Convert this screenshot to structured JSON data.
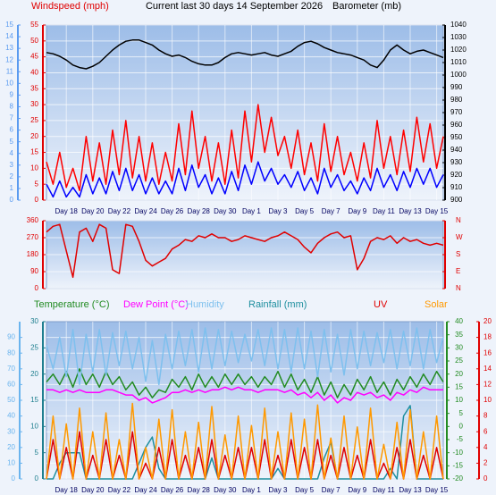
{
  "chart_data": [
    {
      "type": "line",
      "title": "Current last 30 days 14 September 2026",
      "x": [
        0,
        0.5,
        1,
        1.5,
        2,
        2.5,
        3,
        3.5,
        4,
        4.5,
        5,
        5.5,
        6,
        6.5,
        7,
        7.5,
        8,
        8.5,
        9,
        9.5,
        10,
        10.5,
        11,
        11.5,
        12,
        12.5,
        13,
        13.5,
        14,
        14.5,
        15,
        15.5,
        16,
        16.5,
        17,
        17.5,
        18,
        18.5,
        19,
        19.5,
        20,
        20.5,
        21,
        21.5,
        22,
        22.5,
        23,
        23.5,
        24,
        24.5,
        25,
        25.5,
        26,
        26.5,
        27,
        27.5,
        28,
        28.5,
        29,
        29.5,
        30
      ],
      "xlim": [
        0,
        30
      ],
      "xticks": [
        {
          "value": 1.5,
          "label": "Day 18"
        },
        {
          "value": 3.5,
          "label": "Day 20"
        },
        {
          "value": 5.5,
          "label": "Day 22"
        },
        {
          "value": 7.5,
          "label": "Day 24"
        },
        {
          "value": 9.5,
          "label": "Day 26"
        },
        {
          "value": 11.5,
          "label": "Day 28"
        },
        {
          "value": 13.5,
          "label": "Day 30"
        },
        {
          "value": 15.5,
          "label": "Day 1"
        },
        {
          "value": 17.5,
          "label": "Day 3"
        },
        {
          "value": 19.5,
          "label": "Day 5"
        },
        {
          "value": 21.5,
          "label": "Day 7"
        },
        {
          "value": 23.5,
          "label": "Day 9"
        },
        {
          "value": 25.5,
          "label": "Day 11"
        },
        {
          "value": 27.5,
          "label": "Day 13"
        },
        {
          "value": 29.5,
          "label": "Day 15"
        }
      ],
      "axes": [
        {
          "side": "left",
          "color": "#5b9bf0",
          "ylim": [
            0,
            15
          ],
          "yticks": [
            0,
            1,
            2,
            3,
            4,
            5,
            6,
            7,
            8,
            9,
            10,
            11,
            12,
            13,
            14,
            15
          ]
        },
        {
          "side": "left",
          "color": "#e00000",
          "label": "Windspeed (mph)",
          "ylim": [
            0,
            55
          ],
          "yticks": [
            0,
            5,
            10,
            15,
            20,
            25,
            30,
            35,
            40,
            45,
            50,
            55
          ],
          "grid": true
        },
        {
          "side": "right",
          "color": "#000000",
          "label": "Barometer (mb)",
          "ylim": [
            900,
            1040
          ],
          "yticks": [
            900,
            910,
            920,
            930,
            940,
            950,
            960,
            970,
            980,
            990,
            1000,
            1010,
            1020,
            1030,
            1040
          ]
        }
      ],
      "series": [
        {
          "color": "#ff0000",
          "axis": 1,
          "values": [
            12,
            5,
            15,
            4,
            10,
            3,
            20,
            6,
            18,
            5,
            22,
            8,
            25,
            7,
            20,
            6,
            18,
            5,
            15,
            6,
            24,
            8,
            28,
            10,
            20,
            6,
            18,
            5,
            22,
            7,
            28,
            12,
            30,
            15,
            26,
            14,
            20,
            10,
            22,
            8,
            18,
            6,
            24,
            9,
            20,
            8,
            15,
            6,
            18,
            7,
            25,
            10,
            20,
            8,
            22,
            9,
            26,
            12,
            24,
            10,
            20
          ]
        },
        {
          "color": "#0000ff",
          "axis": 1,
          "values": [
            5,
            1,
            6,
            1,
            4,
            1,
            8,
            2,
            7,
            2,
            9,
            3,
            10,
            3,
            8,
            2,
            7,
            2,
            6,
            2,
            10,
            3,
            11,
            4,
            8,
            2,
            7,
            2,
            9,
            3,
            11,
            5,
            12,
            6,
            10,
            5,
            8,
            4,
            9,
            3,
            7,
            2,
            10,
            4,
            8,
            3,
            6,
            2,
            7,
            3,
            10,
            4,
            8,
            3,
            9,
            4,
            10,
            5,
            10,
            4,
            8
          ]
        },
        {
          "color": "#000000",
          "axis": 2,
          "values": [
            1018,
            1017,
            1015,
            1012,
            1008,
            1006,
            1005,
            1007,
            1010,
            1015,
            1020,
            1024,
            1027,
            1028,
            1028,
            1026,
            1024,
            1020,
            1017,
            1015,
            1016,
            1014,
            1011,
            1009,
            1008,
            1008,
            1010,
            1014,
            1017,
            1018,
            1017,
            1016,
            1017,
            1018,
            1016,
            1015,
            1017,
            1019,
            1023,
            1026,
            1027,
            1025,
            1022,
            1020,
            1018,
            1017,
            1016,
            1014,
            1012,
            1008,
            1006,
            1012,
            1020,
            1024,
            1020,
            1017,
            1019,
            1020,
            1018,
            1016,
            1014
          ]
        }
      ]
    },
    {
      "type": "line",
      "x": [
        0,
        0.5,
        1,
        1.5,
        2,
        2.5,
        3,
        3.5,
        4,
        4.5,
        5,
        5.5,
        6,
        6.5,
        7,
        7.5,
        8,
        8.5,
        9,
        9.5,
        10,
        10.5,
        11,
        11.5,
        12,
        12.5,
        13,
        13.5,
        14,
        14.5,
        15,
        15.5,
        16,
        16.5,
        17,
        17.5,
        18,
        18.5,
        19,
        19.5,
        20,
        20.5,
        21,
        21.5,
        22,
        22.5,
        23,
        23.5,
        24,
        24.5,
        25,
        25.5,
        26,
        26.5,
        27,
        27.5,
        28,
        28.5,
        29,
        29.5,
        30
      ],
      "xlim": [
        0,
        30
      ],
      "axes": [
        {
          "side": "left",
          "color": "#e00000",
          "ylim": [
            0,
            360
          ],
          "yticks": [
            0,
            90,
            180,
            270,
            360
          ],
          "grid": true
        },
        {
          "side": "right",
          "color": "#e00000",
          "ylim": [
            0,
            360
          ],
          "yticks": [
            {
              "value": 0,
              "label": "N"
            },
            {
              "value": 90,
              "label": "E"
            },
            {
              "value": 180,
              "label": "S"
            },
            {
              "value": 270,
              "label": "W"
            },
            {
              "value": 360,
              "label": "N"
            }
          ]
        }
      ],
      "series": [
        {
          "color": "#e00000",
          "axis": 0,
          "values": [
            300,
            330,
            340,
            200,
            60,
            300,
            320,
            250,
            340,
            320,
            100,
            80,
            340,
            330,
            250,
            150,
            120,
            140,
            160,
            210,
            230,
            260,
            250,
            280,
            270,
            290,
            270,
            270,
            250,
            260,
            280,
            270,
            260,
            250,
            270,
            280,
            300,
            280,
            260,
            220,
            190,
            240,
            270,
            290,
            300,
            270,
            280,
            100,
            160,
            250,
            270,
            260,
            280,
            240,
            270,
            250,
            260,
            240,
            230,
            240,
            230
          ]
        }
      ]
    },
    {
      "type": "line",
      "x": [
        0,
        0.5,
        1,
        1.5,
        2,
        2.5,
        3,
        3.5,
        4,
        4.5,
        5,
        5.5,
        6,
        6.5,
        7,
        7.5,
        8,
        8.5,
        9,
        9.5,
        10,
        10.5,
        11,
        11.5,
        12,
        12.5,
        13,
        13.5,
        14,
        14.5,
        15,
        15.5,
        16,
        16.5,
        17,
        17.5,
        18,
        18.5,
        19,
        19.5,
        20,
        20.5,
        21,
        21.5,
        22,
        22.5,
        23,
        23.5,
        24,
        24.5,
        25,
        25.5,
        26,
        26.5,
        27,
        27.5,
        28,
        28.5,
        29,
        29.5,
        30
      ],
      "xlim": [
        0,
        30
      ],
      "xticks": [
        {
          "value": 1.5,
          "label": "Day 18"
        },
        {
          "value": 3.5,
          "label": "Day 20"
        },
        {
          "value": 5.5,
          "label": "Day 22"
        },
        {
          "value": 7.5,
          "label": "Day 24"
        },
        {
          "value": 9.5,
          "label": "Day 26"
        },
        {
          "value": 11.5,
          "label": "Day 28"
        },
        {
          "value": 13.5,
          "label": "Day 30"
        },
        {
          "value": 15.5,
          "label": "Day 1"
        },
        {
          "value": 17.5,
          "label": "Day 3"
        },
        {
          "value": 19.5,
          "label": "Day 5"
        },
        {
          "value": 21.5,
          "label": "Day 7"
        },
        {
          "value": 23.5,
          "label": "Day 9"
        },
        {
          "value": 25.5,
          "label": "Day 11"
        },
        {
          "value": 27.5,
          "label": "Day 13"
        },
        {
          "value": 29.5,
          "label": "Day 15"
        }
      ],
      "axes": [
        {
          "side": "left",
          "color": "#6ab4ee",
          "ylim": [
            0,
            100
          ],
          "yticks": [
            0,
            10,
            20,
            30,
            40,
            50,
            60,
            70,
            80,
            90
          ],
          "grid": true
        },
        {
          "side": "left",
          "color": "#1f7f8f",
          "ylim": [
            0,
            30
          ],
          "yticks": [
            0,
            5,
            10,
            15,
            20,
            25,
            30
          ]
        },
        {
          "side": "right",
          "color": "#228b22",
          "ylim": [
            -20,
            40
          ],
          "yticks": [
            -20,
            -15,
            -10,
            -5,
            0,
            5,
            10,
            15,
            20,
            25,
            30,
            35,
            40
          ]
        },
        {
          "side": "right",
          "color": "#e00000",
          "ylim": [
            0,
            20
          ],
          "yticks": [
            0,
            2,
            4,
            6,
            8,
            10,
            12,
            14,
            16,
            18,
            20
          ]
        }
      ],
      "series": [
        {
          "name": "Temperature (°C)",
          "color": "#228b22",
          "axis": 2,
          "values": [
            17,
            20,
            16,
            21,
            15,
            22,
            16,
            20,
            15,
            21,
            16,
            19,
            14,
            17,
            12,
            15,
            11,
            14,
            13,
            18,
            15,
            19,
            14,
            20,
            15,
            19,
            15,
            20,
            16,
            20,
            16,
            19,
            15,
            19,
            16,
            21,
            15,
            20,
            14,
            18,
            13,
            19,
            12,
            17,
            11,
            16,
            12,
            18,
            14,
            19,
            13,
            17,
            12,
            18,
            14,
            19,
            15,
            20,
            16,
            21,
            17
          ]
        },
        {
          "name": "Dew Point (°C)",
          "color": "#ff00ff",
          "axis": 2,
          "values": [
            14,
            14,
            13,
            14,
            13,
            14,
            13,
            13,
            13,
            14,
            14,
            13,
            12,
            12,
            10,
            11,
            9,
            10,
            11,
            13,
            13,
            14,
            13,
            14,
            13,
            14,
            14,
            15,
            14,
            15,
            14,
            14,
            13,
            14,
            14,
            14,
            13,
            14,
            12,
            13,
            11,
            13,
            10,
            12,
            9,
            11,
            10,
            13,
            12,
            13,
            11,
            12,
            10,
            13,
            12,
            14,
            13,
            15,
            14,
            14,
            14
          ]
        },
        {
          "name": "Humidity",
          "color": "#7ec0ee",
          "axis": 0,
          "values": [
            85,
            70,
            90,
            65,
            95,
            60,
            92,
            68,
            95,
            66,
            93,
            72,
            94,
            70,
            90,
            62,
            88,
            60,
            92,
            70,
            94,
            72,
            95,
            68,
            96,
            70,
            95,
            72,
            94,
            74,
            92,
            75,
            95,
            72,
            96,
            70,
            95,
            68,
            96,
            70,
            94,
            65,
            95,
            68,
            92,
            66,
            95,
            70,
            94,
            72,
            93,
            74,
            95,
            70,
            94,
            72,
            96,
            70,
            95,
            74,
            90
          ]
        },
        {
          "name": "Rainfall (mm)",
          "color": "#1f8f9f",
          "axis": 1,
          "values": [
            0,
            0,
            3,
            5,
            5,
            5,
            0,
            0,
            0,
            0,
            0,
            0,
            0,
            0,
            3,
            6,
            8,
            2,
            0,
            0,
            0,
            0,
            0,
            0,
            0,
            4,
            0,
            0,
            0,
            0,
            0,
            0,
            0,
            0,
            0,
            2,
            0,
            0,
            0,
            0,
            0,
            0,
            4,
            7,
            0,
            0,
            0,
            0,
            0,
            0,
            0,
            0,
            2,
            0,
            12,
            14,
            0,
            0,
            0,
            0,
            0
          ]
        },
        {
          "name": "UV",
          "color": "#e00000",
          "axis": 3,
          "values": [
            0,
            5,
            0,
            4,
            0,
            6,
            0,
            3,
            0,
            5,
            0,
            3,
            0,
            6,
            0,
            2,
            0,
            4,
            0,
            5,
            0,
            3,
            0,
            4,
            0,
            5,
            0,
            3,
            0,
            4,
            0,
            4,
            0,
            5,
            0,
            3,
            0,
            5,
            0,
            4,
            0,
            5,
            0,
            3,
            0,
            4,
            0,
            3,
            0,
            5,
            0,
            2,
            0,
            4,
            0,
            5,
            0,
            3,
            0,
            4,
            0
          ]
        },
        {
          "name": "Solar",
          "color": "#ff9900",
          "axis": 0,
          "values": [
            0,
            40,
            0,
            35,
            0,
            45,
            0,
            30,
            0,
            42,
            0,
            25,
            0,
            48,
            0,
            20,
            0,
            38,
            0,
            44,
            0,
            30,
            0,
            36,
            0,
            46,
            0,
            28,
            0,
            40,
            0,
            34,
            0,
            45,
            0,
            30,
            0,
            42,
            0,
            38,
            0,
            47,
            0,
            26,
            0,
            40,
            0,
            33,
            0,
            45,
            0,
            22,
            0,
            36,
            0,
            44,
            0,
            30,
            0,
            40,
            0
          ]
        }
      ]
    }
  ]
}
